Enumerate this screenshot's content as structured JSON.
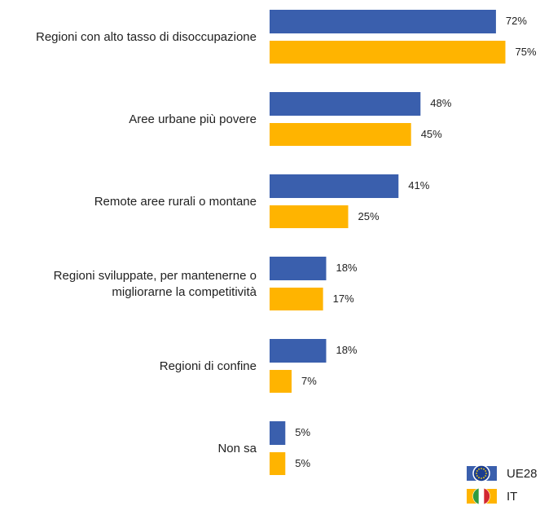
{
  "chart_data": {
    "type": "bar",
    "orientation": "horizontal",
    "categories": [
      "Regioni con alto tasso di disoccupazione",
      "Aree urbane più povere",
      "Remote aree rurali o montane",
      "Regioni sviluppate, per mantenerne o migliorarne la competitività",
      "Regioni di confine",
      "Non sa"
    ],
    "series": [
      {
        "name": "UE28",
        "color": "#3a5fad",
        "values": [
          72,
          48,
          41,
          18,
          18,
          5
        ],
        "value_labels": [
          "72%",
          "48%",
          "41%",
          "18%",
          "18%",
          "5%"
        ]
      },
      {
        "name": "IT",
        "color": "#ffb400",
        "values": [
          75,
          45,
          25,
          17,
          7,
          5
        ],
        "value_labels": [
          "75%",
          "45%",
          "25%",
          "17%",
          "7%",
          "5%"
        ]
      }
    ]
  }
}
